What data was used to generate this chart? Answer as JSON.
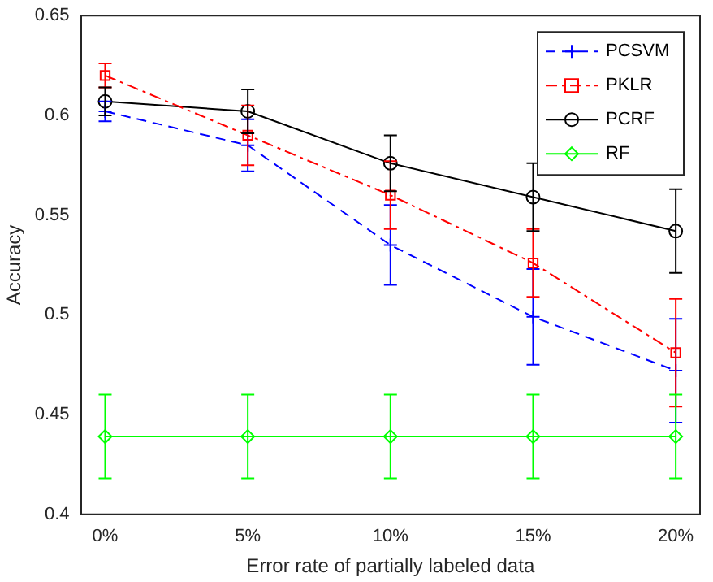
{
  "chart_data": {
    "type": "line",
    "xlabel": "Error rate of partially labeled data",
    "ylabel": "Accuracy",
    "categories": [
      "0%",
      "5%",
      "10%",
      "15%",
      "20%"
    ],
    "ylim": [
      0.4,
      0.65
    ],
    "yticks": [
      0.4,
      0.45,
      0.5,
      0.55,
      0.6,
      0.65
    ],
    "grid": false,
    "legend": "top right",
    "series": [
      {
        "name": "PCSVM",
        "color": "#0000ff",
        "marker": "cross",
        "line_style": "dashed",
        "values": [
          0.602,
          0.585,
          0.535,
          0.499,
          0.472
        ],
        "errors": [
          0.005,
          0.013,
          0.02,
          0.024,
          0.026
        ]
      },
      {
        "name": "PKLR",
        "color": "#ff0000",
        "marker": "square",
        "line_style": "dashdot",
        "values": [
          0.62,
          0.59,
          0.56,
          0.526,
          0.481
        ],
        "errors": [
          0.006,
          0.015,
          0.017,
          0.017,
          0.027
        ]
      },
      {
        "name": "PCRF",
        "color": "#000000",
        "marker": "circle",
        "line_style": "solid",
        "values": [
          0.607,
          0.602,
          0.576,
          0.559,
          0.542
        ],
        "errors": [
          0.007,
          0.011,
          0.014,
          0.017,
          0.021
        ]
      },
      {
        "name": "RF",
        "color": "#00ff00",
        "marker": "diamond",
        "line_style": "solid",
        "values": [
          0.439,
          0.439,
          0.439,
          0.439,
          0.439
        ],
        "errors": [
          0.021,
          0.021,
          0.021,
          0.021,
          0.021
        ]
      }
    ]
  }
}
